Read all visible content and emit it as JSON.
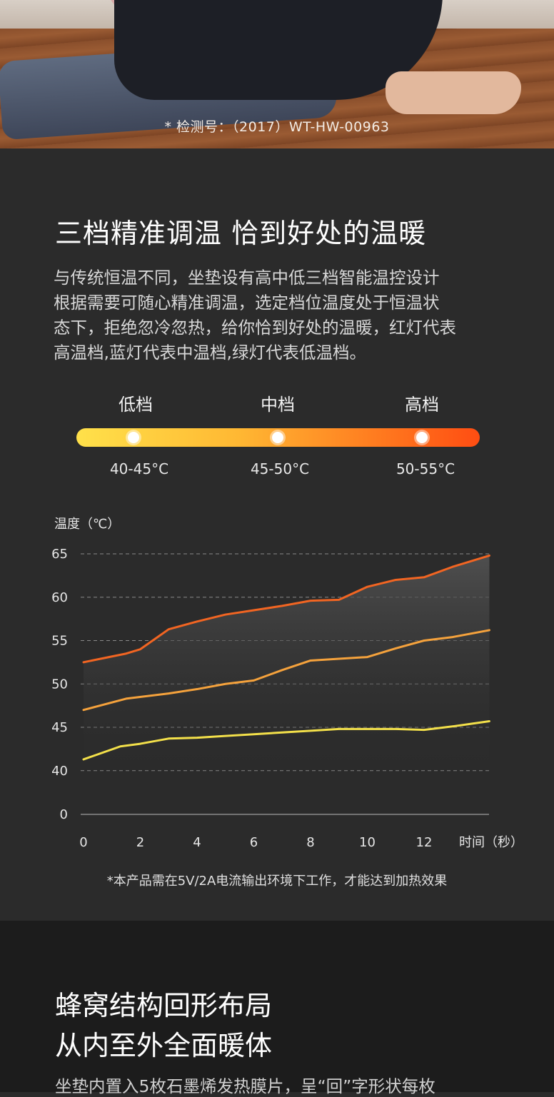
{
  "photo": {
    "caption": "* 检测号：（2017）WT-HW-00963"
  },
  "section": {
    "title": "三档精准调温  恰到好处的温暖",
    "description": [
      "与传统恒温不同，坐垫设有高中低三档智能温控设计",
      "根据需要可随心精准调温，选定档位温度处于恒温状",
      "态下，拒绝忽冷忽热，给你恰到好处的温暖，红灯代表",
      "高温档,蓝灯代表中温档,绿灯代表低温档。"
    ],
    "levels": [
      {
        "name": "低档",
        "temp": "40-45°C"
      },
      {
        "name": "中档",
        "temp": "45-50°C"
      },
      {
        "name": "高档",
        "temp": "50-55°C"
      }
    ],
    "colors": {
      "low": "#f3e04a",
      "mid": "#f5a23c",
      "high": "#f26522"
    },
    "footnote": "*本产品需在5V/2A电流输出环境下工作，才能达到加热效果"
  },
  "chart_data": {
    "type": "line",
    "ylabel": "温度（℃）",
    "xlabel": "时间（秒）",
    "y_ticks": [
      0,
      40,
      45,
      50,
      55,
      60,
      65
    ],
    "x_ticks": [
      0,
      2,
      4,
      6,
      8,
      10,
      12
    ],
    "grid": true,
    "series": [
      {
        "x": [
          0,
          1.5,
          2,
          3,
          4,
          5,
          6,
          7,
          8,
          9,
          10,
          11,
          12,
          13,
          14.3
        ],
        "values": [
          52.5,
          53.5,
          54,
          56.3,
          57.2,
          58,
          58.5,
          59,
          59.6,
          59.7,
          61.2,
          62,
          62.3,
          63.5,
          64.8
        ]
      },
      {
        "x": [
          0,
          1.5,
          3,
          4,
          5,
          6,
          7,
          8,
          9,
          10,
          11,
          12,
          13,
          14.3
        ],
        "values": [
          47,
          48.3,
          48.9,
          49.4,
          50,
          50.4,
          51.6,
          52.7,
          52.9,
          53.1,
          54.1,
          55,
          55.4,
          56.2
        ]
      },
      {
        "x": [
          0,
          1.3,
          2,
          3,
          4,
          5,
          6,
          7,
          8,
          9,
          10,
          11,
          12,
          13,
          14.3
        ],
        "values": [
          41.3,
          42.8,
          43.1,
          43.7,
          43.8,
          44,
          44.2,
          44.4,
          44.6,
          44.8,
          44.8,
          44.8,
          44.7,
          45.1,
          45.7
        ]
      }
    ]
  },
  "section2": {
    "title_lines": [
      "蜂窝结构回形布局",
      "从内至外全面暖体"
    ],
    "description": "坐垫内置入5枚石墨烯发热膜片，呈“回”字形状每枚"
  }
}
